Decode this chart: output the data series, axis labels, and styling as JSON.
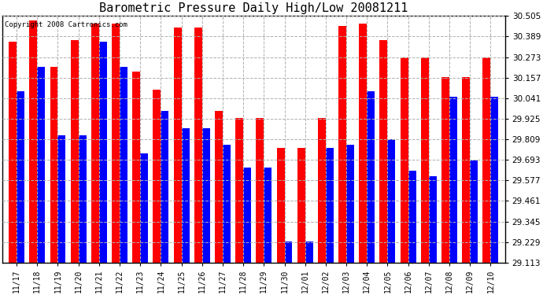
{
  "title": "Barometric Pressure Daily High/Low 20081211",
  "copyright": "Copyright 2008 Cartronics.com",
  "dates": [
    "11/17",
    "11/18",
    "11/19",
    "11/20",
    "11/21",
    "11/22",
    "11/23",
    "11/24",
    "11/25",
    "11/26",
    "11/27",
    "11/28",
    "11/29",
    "11/30",
    "12/01",
    "12/02",
    "12/03",
    "12/04",
    "12/05",
    "12/06",
    "12/07",
    "12/08",
    "12/09",
    "12/10"
  ],
  "highs": [
    30.36,
    30.48,
    30.22,
    30.37,
    30.46,
    30.46,
    30.19,
    30.09,
    30.44,
    30.44,
    29.97,
    29.93,
    29.93,
    29.76,
    29.76,
    29.93,
    30.45,
    30.46,
    30.37,
    30.27,
    30.27,
    30.16,
    30.16,
    30.27
  ],
  "lows": [
    30.08,
    30.22,
    29.83,
    29.83,
    30.36,
    30.22,
    29.73,
    29.97,
    29.87,
    29.87,
    29.78,
    29.65,
    29.65,
    29.23,
    29.23,
    29.76,
    29.78,
    30.08,
    29.81,
    29.63,
    29.6,
    30.05,
    29.69,
    30.05
  ],
  "ylim_min": 29.113,
  "ylim_max": 30.505,
  "yticks": [
    29.113,
    29.229,
    29.345,
    29.461,
    29.577,
    29.693,
    29.809,
    29.925,
    30.041,
    30.157,
    30.273,
    30.389,
    30.505
  ],
  "high_color": "#ff0000",
  "low_color": "#0000ff",
  "bg_color": "#ffffff",
  "grid_color": "#b0b0b0",
  "title_fontsize": 11,
  "bar_width": 0.38
}
